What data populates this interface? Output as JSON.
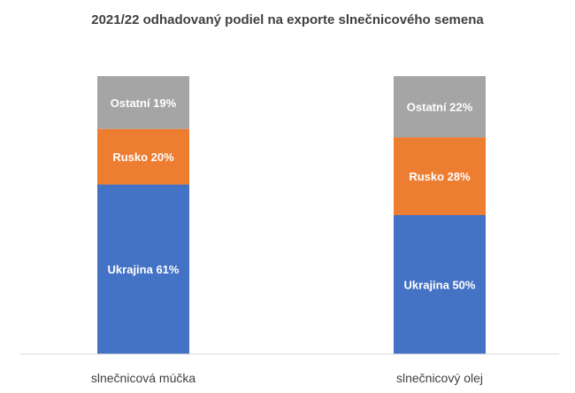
{
  "chart_data": {
    "type": "bar",
    "stacked": true,
    "percent_stacked": true,
    "title": "2021/22 odhadovaný podiel na exporte slnečnicového semena",
    "xlabel": "",
    "ylabel": "",
    "ylim": [
      0,
      100
    ],
    "grid": false,
    "legend": "none",
    "categories": [
      "slnečnicová múčka",
      "slnečnicový olej"
    ],
    "series": [
      {
        "name": "Ukrajina",
        "color": "#4472C4",
        "values": [
          61,
          50
        ],
        "labels": [
          "Ukrajina 61%",
          "Ukrajina 50%"
        ]
      },
      {
        "name": "Rusko",
        "color": "#ED7D31",
        "values": [
          20,
          28
        ],
        "labels": [
          "Rusko 20%",
          "Rusko 28%"
        ]
      },
      {
        "name": "Ostatní",
        "color": "#A5A5A5",
        "values": [
          19,
          22
        ],
        "labels": [
          "Ostatní 19%",
          "Ostatní 22%"
        ]
      }
    ],
    "axis_color": "#D9D9D9"
  }
}
